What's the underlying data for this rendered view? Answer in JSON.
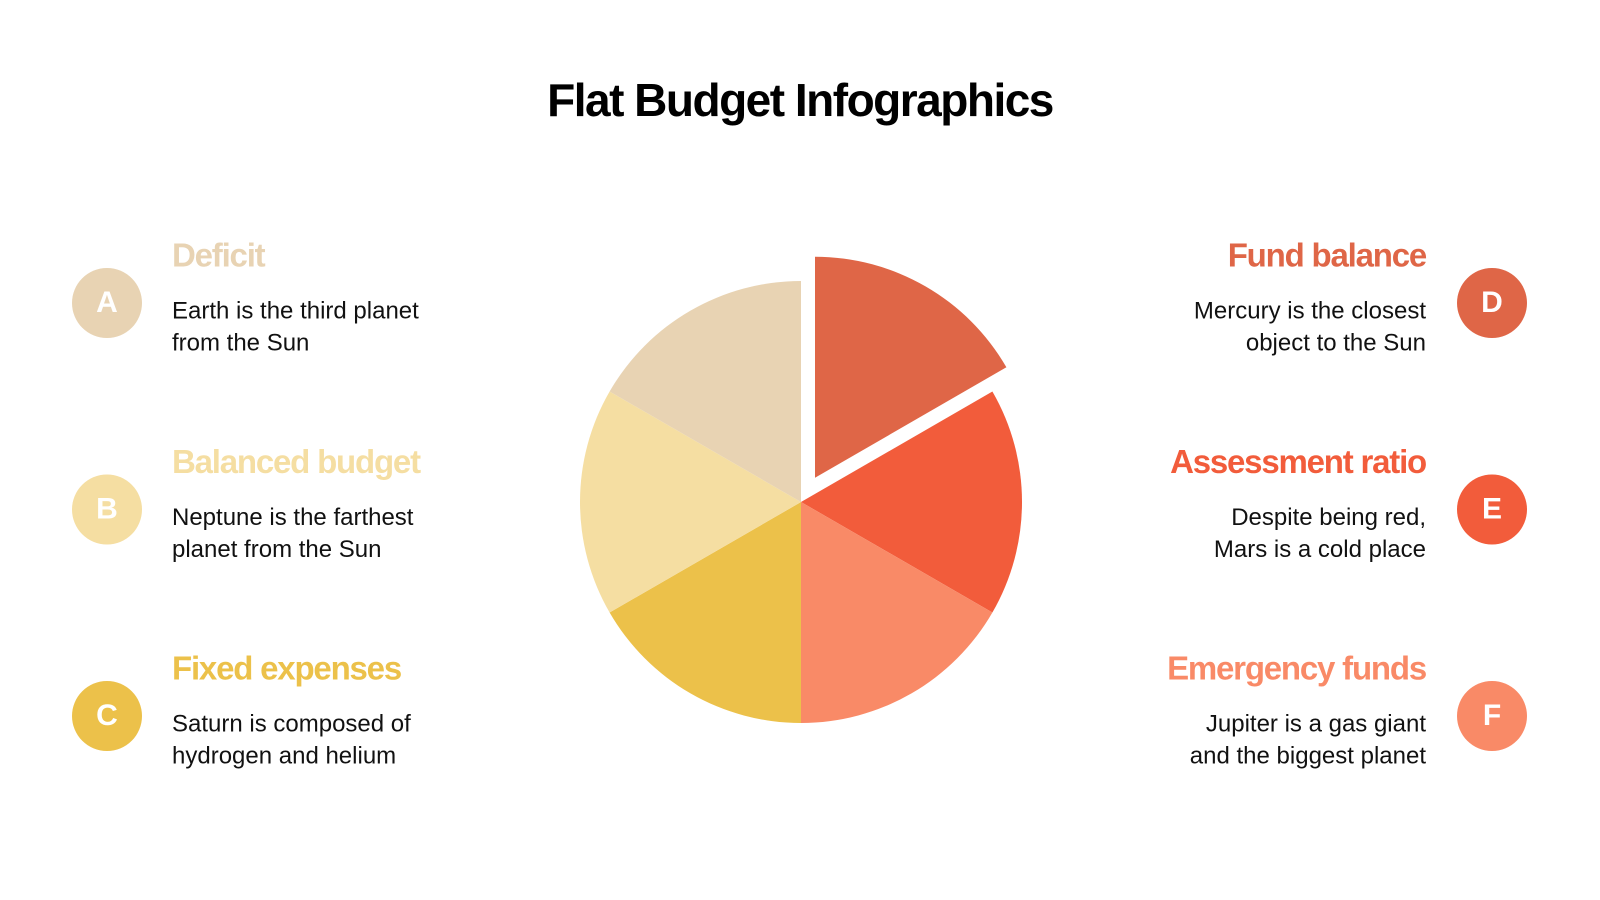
{
  "title": "Flat Budget Infographics",
  "items": [
    {
      "letter": "A",
      "heading": "Deficit",
      "text": [
        "Earth is the third planet",
        "from the Sun"
      ],
      "color": "#e8d3b3"
    },
    {
      "letter": "B",
      "heading": "Balanced budget",
      "text": [
        "Neptune is the farthest",
        "planet from the Sun"
      ],
      "color": "#f5dea2"
    },
    {
      "letter": "C",
      "heading": "Fixed expenses",
      "text": [
        "Saturn is composed of",
        "hydrogen and helium"
      ],
      "color": "#ecc14a"
    },
    {
      "letter": "D",
      "heading": "Fund balance",
      "text": [
        "Mercury is the closest",
        "object to the Sun"
      ],
      "color": "#df6647"
    },
    {
      "letter": "E",
      "heading": "Assessment ratio",
      "text": [
        "Despite being red,",
        "Mars is a cold place"
      ],
      "color": "#f25c3b"
    },
    {
      "letter": "F",
      "heading": "Emergency funds",
      "text": [
        "Jupiter is a gas giant",
        "and the biggest planet"
      ],
      "color": "#f98a67"
    }
  ]
}
